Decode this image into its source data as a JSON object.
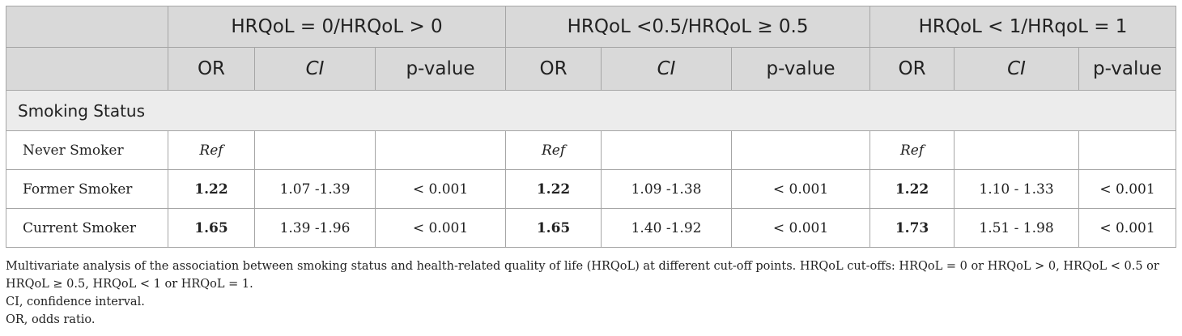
{
  "table": {
    "groups": [
      "HRQoL = 0/HRQoL > 0",
      "HRQoL <0.5/HRQoL ≥ 0.5",
      "HRQoL < 1/HRqoL = 1"
    ],
    "subheaders": {
      "or": "OR",
      "ci": "CI",
      "p": "p-value"
    },
    "section_label": "Smoking Status",
    "rows": [
      {
        "label": "Never Smoker",
        "g1": {
          "or": "Ref",
          "ci": "",
          "p": ""
        },
        "g2": {
          "or": "Ref",
          "ci": "",
          "p": ""
        },
        "g3": {
          "or": "Ref",
          "ci": "",
          "p": ""
        }
      },
      {
        "label": "Former Smoker",
        "g1": {
          "or": "1.22",
          "ci": "1.07 -1.39",
          "p": "< 0.001"
        },
        "g2": {
          "or": "1.22",
          "ci": "1.09 -1.38",
          "p": "< 0.001"
        },
        "g3": {
          "or": "1.22",
          "ci": "1.10 - 1.33",
          "p": "< 0.001"
        }
      },
      {
        "label": "Current Smoker",
        "g1": {
          "or": "1.65",
          "ci": "1.39 -1.96",
          "p": "< 0.001"
        },
        "g2": {
          "or": "1.65",
          "ci": "1.40 -1.92",
          "p": "< 0.001"
        },
        "g3": {
          "or": "1.73",
          "ci": "1.51 - 1.98",
          "p": "< 0.001"
        }
      }
    ]
  },
  "footnotes": {
    "description": "Multivariate analysis of the association between smoking status and health-related quality of life (HRQoL) at different cut-off points. HRQoL cut-offs: HRQoL = 0 or HRQoL > 0, HRQoL < 0.5 or HRQoL ≥ 0.5, HRQoL < 1 or HRQoL = 1.",
    "ci": "CI, confidence interval.",
    "or": "OR, odds ratio."
  }
}
